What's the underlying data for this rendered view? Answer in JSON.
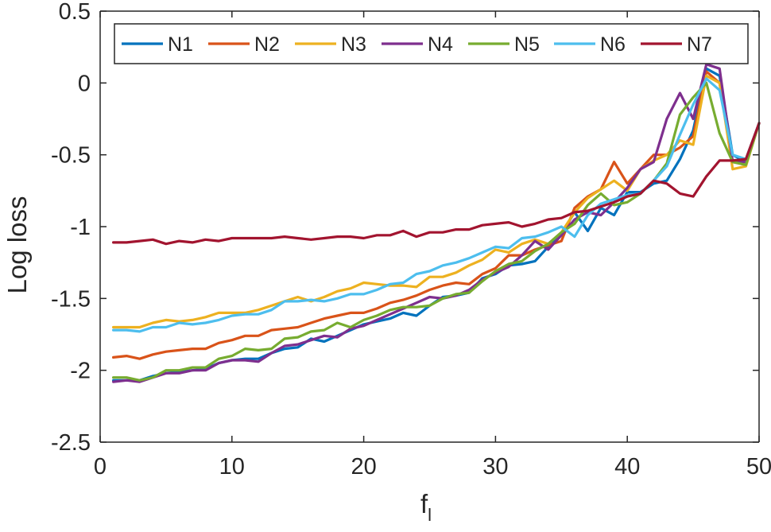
{
  "chart_data": {
    "type": "line",
    "xlabel": "f",
    "xlabel_sub": "l",
    "ylabel": "Log loss",
    "xlim": [
      0,
      50
    ],
    "ylim": [
      -2.5,
      0.5
    ],
    "x_ticks": [
      0,
      10,
      20,
      30,
      40,
      50
    ],
    "y_ticks": [
      0.5,
      0,
      -0.5,
      -1,
      -1.5,
      -2,
      -2.5
    ],
    "x_tick_labels": [
      "0",
      "10",
      "20",
      "30",
      "40",
      "50"
    ],
    "y_tick_labels": [
      "0.5",
      "0",
      "-0.5",
      "-1",
      "-1.5",
      "-2",
      "-2.5"
    ],
    "grid": false,
    "legend_placement": "top",
    "x": [
      1,
      2,
      3,
      4,
      5,
      6,
      7,
      8,
      9,
      10,
      11,
      12,
      13,
      14,
      15,
      16,
      17,
      18,
      19,
      20,
      21,
      22,
      23,
      24,
      25,
      26,
      27,
      28,
      29,
      30,
      31,
      32,
      33,
      34,
      35,
      36,
      37,
      38,
      39,
      40,
      41,
      42,
      43,
      44,
      45,
      46,
      47,
      48,
      49,
      50
    ],
    "series": [
      {
        "name": "N1",
        "color": "#0072BD",
        "values": [
          -2.07,
          -2.07,
          -2.07,
          -2.04,
          -2.02,
          -2.01,
          -2.0,
          -1.99,
          -1.95,
          -1.93,
          -1.92,
          -1.92,
          -1.88,
          -1.85,
          -1.84,
          -1.78,
          -1.8,
          -1.76,
          -1.72,
          -1.68,
          -1.66,
          -1.64,
          -1.6,
          -1.62,
          -1.55,
          -1.49,
          -1.48,
          -1.46,
          -1.36,
          -1.33,
          -1.27,
          -1.26,
          -1.24,
          -1.14,
          -1.05,
          -0.9,
          -1.03,
          -0.87,
          -0.92,
          -0.76,
          -0.76,
          -0.7,
          -0.68,
          -0.53,
          -0.33,
          0.1,
          0.05,
          -0.5,
          -0.55,
          -0.28
        ]
      },
      {
        "name": "N2",
        "color": "#D95319",
        "values": [
          -1.91,
          -1.9,
          -1.92,
          -1.89,
          -1.87,
          -1.86,
          -1.85,
          -1.85,
          -1.81,
          -1.79,
          -1.76,
          -1.76,
          -1.72,
          -1.71,
          -1.7,
          -1.67,
          -1.64,
          -1.62,
          -1.6,
          -1.6,
          -1.57,
          -1.53,
          -1.51,
          -1.48,
          -1.44,
          -1.41,
          -1.39,
          -1.4,
          -1.33,
          -1.29,
          -1.2,
          -1.2,
          -1.16,
          -1.13,
          -1.1,
          -0.87,
          -0.79,
          -0.74,
          -0.55,
          -0.7,
          -0.6,
          -0.5,
          -0.5,
          -0.45,
          -0.37,
          0.08,
          0.0,
          -0.55,
          -0.57,
          -0.28
        ]
      },
      {
        "name": "N3",
        "color": "#EDB120",
        "values": [
          -1.7,
          -1.7,
          -1.7,
          -1.67,
          -1.65,
          -1.66,
          -1.65,
          -1.63,
          -1.6,
          -1.6,
          -1.6,
          -1.58,
          -1.55,
          -1.52,
          -1.49,
          -1.52,
          -1.49,
          -1.45,
          -1.43,
          -1.39,
          -1.4,
          -1.41,
          -1.41,
          -1.42,
          -1.35,
          -1.35,
          -1.32,
          -1.27,
          -1.23,
          -1.16,
          -1.18,
          -1.12,
          -1.09,
          -1.12,
          -1.04,
          -0.9,
          -0.8,
          -0.74,
          -0.68,
          -0.75,
          -0.6,
          -0.54,
          -0.5,
          -0.4,
          -0.43,
          0.05,
          0.0,
          -0.6,
          -0.58,
          -0.28
        ]
      },
      {
        "name": "N4",
        "color": "#7E2F8E",
        "values": [
          -2.08,
          -2.07,
          -2.08,
          -2.05,
          -2.02,
          -2.02,
          -2.0,
          -2.0,
          -1.95,
          -1.93,
          -1.93,
          -1.94,
          -1.88,
          -1.83,
          -1.82,
          -1.79,
          -1.76,
          -1.77,
          -1.71,
          -1.69,
          -1.65,
          -1.61,
          -1.57,
          -1.53,
          -1.49,
          -1.5,
          -1.48,
          -1.44,
          -1.37,
          -1.32,
          -1.28,
          -1.2,
          -1.1,
          -1.16,
          -1.06,
          -0.95,
          -0.9,
          -0.92,
          -0.83,
          -0.73,
          -0.6,
          -0.55,
          -0.25,
          -0.07,
          -0.25,
          0.13,
          0.1,
          -0.55,
          -0.55,
          -0.28
        ]
      },
      {
        "name": "N5",
        "color": "#77AC30",
        "values": [
          -2.05,
          -2.05,
          -2.07,
          -2.05,
          -2.0,
          -2.0,
          -1.98,
          -1.98,
          -1.92,
          -1.9,
          -1.85,
          -1.86,
          -1.85,
          -1.78,
          -1.77,
          -1.73,
          -1.72,
          -1.67,
          -1.7,
          -1.65,
          -1.62,
          -1.58,
          -1.56,
          -1.56,
          -1.55,
          -1.5,
          -1.47,
          -1.46,
          -1.38,
          -1.31,
          -1.26,
          -1.24,
          -1.17,
          -1.12,
          -1.04,
          -0.98,
          -0.85,
          -0.77,
          -0.85,
          -0.83,
          -0.77,
          -0.68,
          -0.56,
          -0.22,
          -0.1,
          0.0,
          -0.35,
          -0.55,
          -0.57,
          -0.28
        ]
      },
      {
        "name": "N6",
        "color": "#4DBEEE",
        "values": [
          -1.72,
          -1.72,
          -1.73,
          -1.7,
          -1.7,
          -1.67,
          -1.68,
          -1.67,
          -1.65,
          -1.62,
          -1.61,
          -1.61,
          -1.58,
          -1.52,
          -1.52,
          -1.51,
          -1.52,
          -1.5,
          -1.47,
          -1.47,
          -1.44,
          -1.4,
          -1.39,
          -1.33,
          -1.31,
          -1.27,
          -1.25,
          -1.22,
          -1.18,
          -1.14,
          -1.15,
          -1.08,
          -1.07,
          -1.04,
          -1.0,
          -1.07,
          -0.92,
          -0.84,
          -0.81,
          -0.78,
          -0.77,
          -0.68,
          -0.58,
          -0.36,
          -0.15,
          0.03,
          -0.05,
          -0.5,
          -0.53,
          -0.28
        ]
      },
      {
        "name": "N7",
        "color": "#A2142F",
        "values": [
          -1.11,
          -1.11,
          -1.1,
          -1.09,
          -1.12,
          -1.1,
          -1.11,
          -1.09,
          -1.1,
          -1.08,
          -1.08,
          -1.08,
          -1.08,
          -1.07,
          -1.08,
          -1.09,
          -1.08,
          -1.07,
          -1.07,
          -1.08,
          -1.06,
          -1.06,
          -1.03,
          -1.07,
          -1.04,
          -1.04,
          -1.02,
          -1.02,
          -0.99,
          -0.98,
          -0.97,
          -1.0,
          -0.98,
          -0.95,
          -0.94,
          -0.9,
          -0.89,
          -0.86,
          -0.83,
          -0.79,
          -0.77,
          -0.68,
          -0.7,
          -0.77,
          -0.79,
          -0.65,
          -0.54,
          -0.54,
          -0.53,
          -0.28
        ]
      }
    ]
  }
}
